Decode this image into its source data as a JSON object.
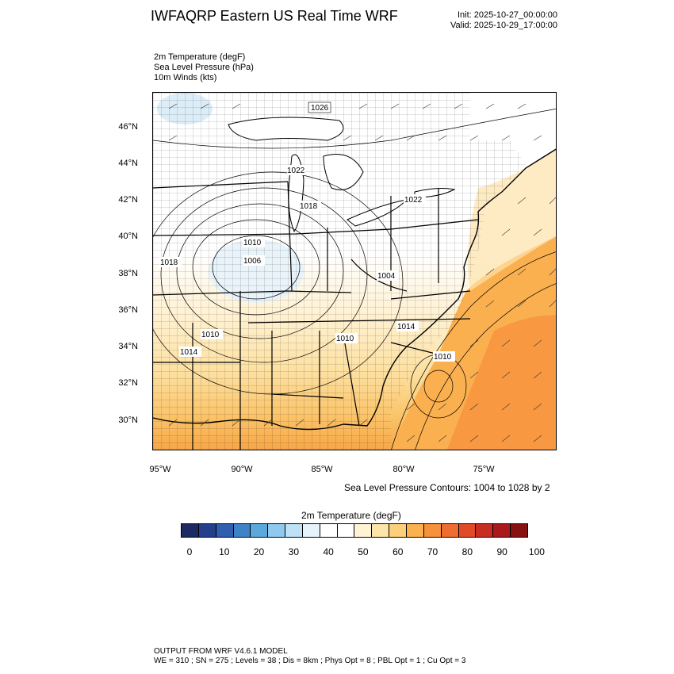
{
  "header": {
    "title": "IWFAQRP Eastern US Real Time WRF",
    "init": "Init: 2025-10-27_00:00:00",
    "valid": "Valid: 2025-10-29_17:00:00"
  },
  "fields": [
    "2m Temperature   (degF)",
    "Sea Level Pressure   (hPa)",
    "10m Winds   (kts)"
  ],
  "map": {
    "lat_labels": [
      "46°N",
      "44°N",
      "42°N",
      "40°N",
      "38°N",
      "36°N",
      "34°N",
      "32°N",
      "30°N"
    ],
    "lon_labels": [
      "95°W",
      "90°W",
      "85°W",
      "80°W",
      "75°W"
    ],
    "pressure_labels": [
      "1026",
      "1022",
      "1018",
      "1010",
      "1006",
      "1018",
      "1004",
      "1022",
      "1010",
      "1014",
      "1010",
      "1014",
      "1010"
    ],
    "contour_note": "Sea Level Pressure Contours: 1004 to 1028 by 2"
  },
  "colorbar": {
    "title": "2m Temperature  (degF)",
    "colors": [
      "#1c2a63",
      "#243f8c",
      "#2f5fae",
      "#3e83c7",
      "#5ca8dd",
      "#8fcaee",
      "#bde1f5",
      "#e6f3fb",
      "#ffffff",
      "#ffffff",
      "#fff3d6",
      "#fde4a8",
      "#fccf7a",
      "#fbb14e",
      "#f6913c",
      "#ee6d30",
      "#e04a28",
      "#c82d22",
      "#a81a1c",
      "#871212"
    ],
    "tick_labels": [
      "0",
      "10",
      "20",
      "30",
      "40",
      "50",
      "60",
      "70",
      "80",
      "90",
      "100"
    ]
  },
  "footer": {
    "line1": "OUTPUT FROM WRF V4.6.1 MODEL",
    "line2": "WE = 310 ; SN = 275 ; Levels = 38 ; Dis = 8km ; Phys Opt = 8 ; PBL Opt = 1 ; Cu Opt = 3"
  }
}
